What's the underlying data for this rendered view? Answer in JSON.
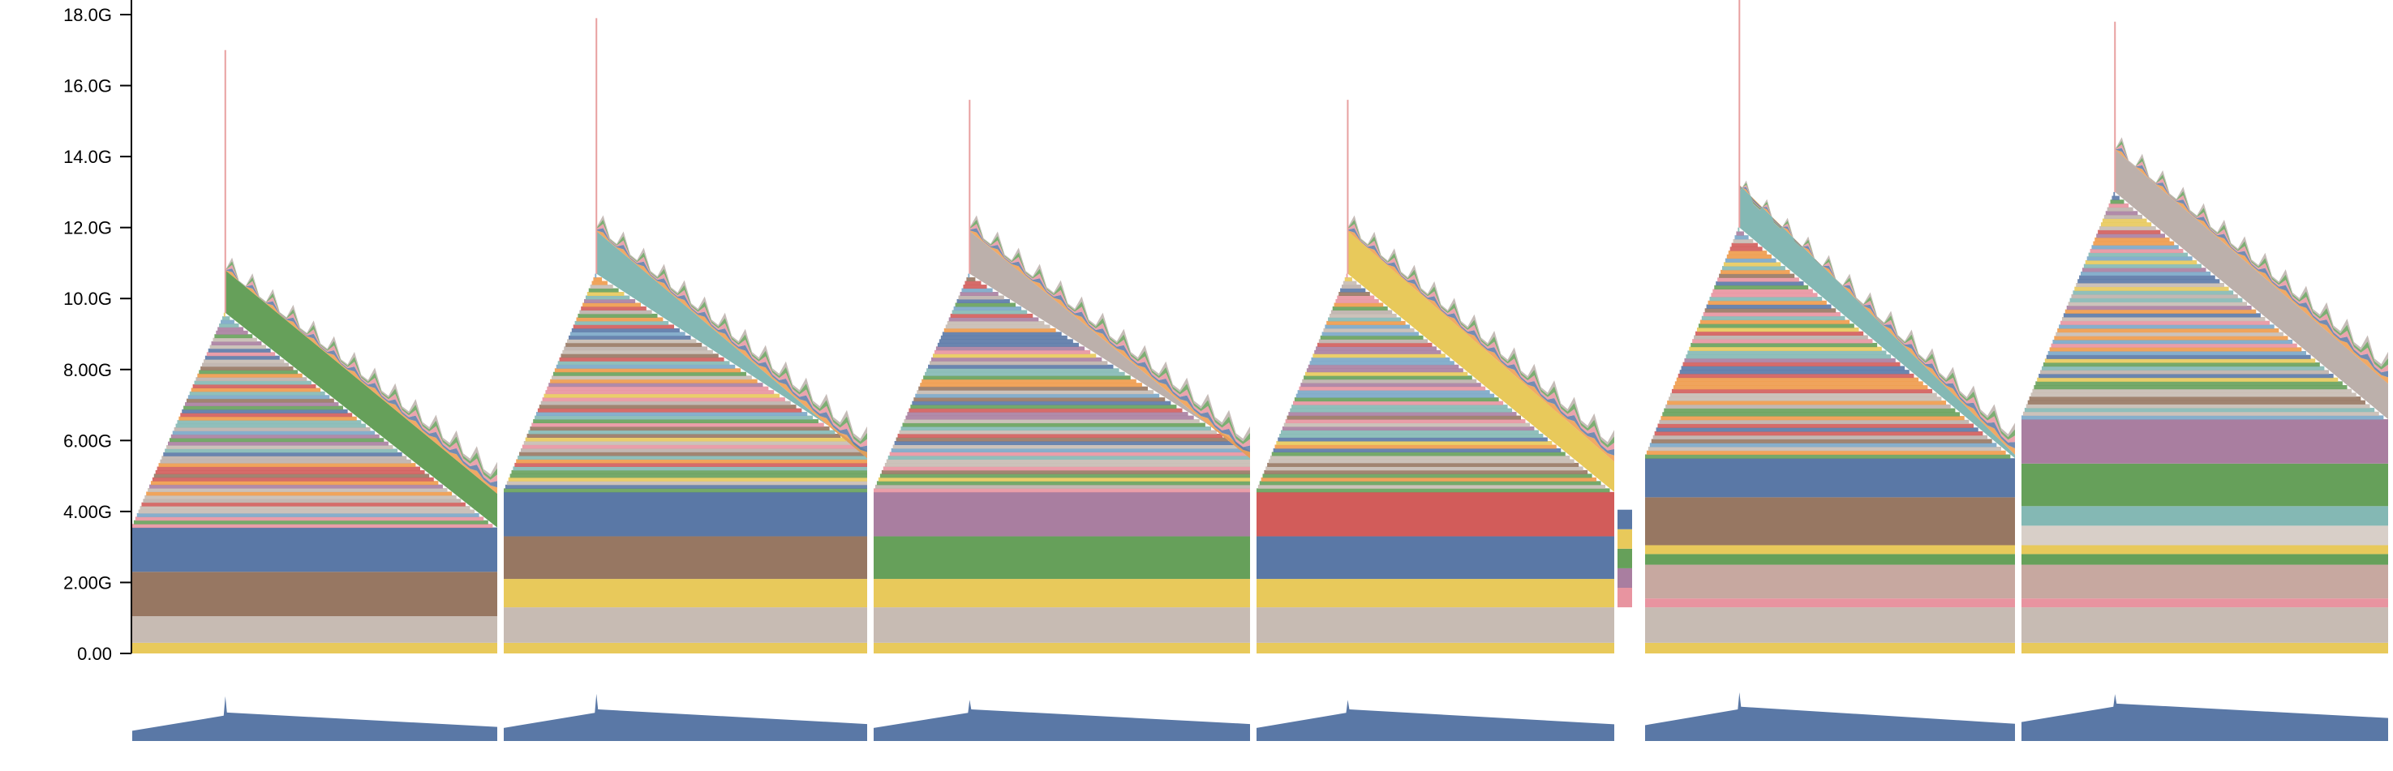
{
  "chart_data": {
    "type": "area",
    "stacked": true,
    "title": "",
    "xlabel": "",
    "ylabel": "",
    "ylim": [
      0,
      18
    ],
    "y_unit": "G",
    "y_ticks": [
      {
        "value": 0,
        "label": "0.00"
      },
      {
        "value": 2,
        "label": "2.00G"
      },
      {
        "value": 4,
        "label": "4.00G"
      },
      {
        "value": 6,
        "label": "6.00G"
      },
      {
        "value": 8,
        "label": "8.00G"
      },
      {
        "value": 10,
        "label": "10.0G"
      },
      {
        "value": 12,
        "label": "12.0G"
      },
      {
        "value": 14,
        "label": "14.0G"
      },
      {
        "value": 16,
        "label": "16.0G"
      },
      {
        "value": 18,
        "label": "18.0G"
      }
    ],
    "grid": false,
    "legend": "none",
    "segments": [
      {
        "index": 1,
        "base_bands": [
          {
            "from": 0,
            "to": 0.3,
            "color": "#e8c95b"
          },
          {
            "from": 0.3,
            "to": 1.05,
            "color": "#c7bbb3"
          },
          {
            "from": 1.05,
            "to": 2.3,
            "color": "#977762"
          },
          {
            "from": 2.3,
            "to": 3.55,
            "color": "#5a78a6"
          }
        ],
        "ramp_start": 4.0,
        "ramp_peak": 9.6,
        "peak_spike": 17.0,
        "tail_top": 10.8,
        "tail_end_top": 4.9,
        "diag_end_bottom": 3.55,
        "diag_color": "#66a05a"
      },
      {
        "index": 2,
        "base_bands": [
          {
            "from": 0,
            "to": 0.3,
            "color": "#e8c95b"
          },
          {
            "from": 0.3,
            "to": 1.3,
            "color": "#c7bbb3"
          },
          {
            "from": 1.3,
            "to": 2.1,
            "color": "#e8c95b"
          },
          {
            "from": 2.1,
            "to": 3.3,
            "color": "#977762"
          },
          {
            "from": 3.3,
            "to": 4.55,
            "color": "#5a78a6"
          }
        ],
        "ramp_start": 5.3,
        "ramp_peak": 10.7,
        "peak_spike": 17.9,
        "tail_top": 12.0,
        "tail_end_top": 5.9,
        "diag_end_bottom": 5.7,
        "diag_color": "#84b8b4"
      },
      {
        "index": 3,
        "base_bands": [
          {
            "from": 0,
            "to": 0.3,
            "color": "#e8c95b"
          },
          {
            "from": 0.3,
            "to": 1.3,
            "color": "#c7bbb3"
          },
          {
            "from": 1.3,
            "to": 2.1,
            "color": "#e8c95b"
          },
          {
            "from": 2.1,
            "to": 3.3,
            "color": "#66a05a"
          },
          {
            "from": 3.3,
            "to": 4.55,
            "color": "#a97ea0"
          }
        ],
        "ramp_start": 5.3,
        "ramp_peak": 10.7,
        "peak_spike": 15.6,
        "tail_top": 12.0,
        "tail_end_top": 5.9,
        "diag_end_bottom": 5.7,
        "diag_color": "#bcb0ab"
      },
      {
        "index": 4,
        "base_bands": [
          {
            "from": 0,
            "to": 0.3,
            "color": "#e8c95b"
          },
          {
            "from": 0.3,
            "to": 1.3,
            "color": "#c7bbb3"
          },
          {
            "from": 1.3,
            "to": 2.1,
            "color": "#e8c95b"
          },
          {
            "from": 2.1,
            "to": 3.3,
            "color": "#5a78a6"
          },
          {
            "from": 3.3,
            "to": 4.55,
            "color": "#d25c5a"
          }
        ],
        "ramp_start": 5.3,
        "ramp_peak": 10.7,
        "peak_spike": 15.6,
        "tail_top": 12.0,
        "tail_end_top": 5.8,
        "diag_end_bottom": 4.55,
        "diag_color": "#e8c95b"
      },
      {
        "index": 5,
        "base_bands": [
          {
            "from": 0,
            "to": 0.3,
            "color": "#e8c95b"
          },
          {
            "from": 0.3,
            "to": 1.3,
            "color": "#c7bbb3"
          },
          {
            "from": 1.3,
            "to": 1.55,
            "color": "#e894a0"
          },
          {
            "from": 1.55,
            "to": 2.5,
            "color": "#c7a8a0"
          },
          {
            "from": 2.5,
            "to": 2.8,
            "color": "#66a05a"
          },
          {
            "from": 2.8,
            "to": 3.05,
            "color": "#e8c95b"
          },
          {
            "from": 3.05,
            "to": 4.4,
            "color": "#977762"
          },
          {
            "from": 4.4,
            "to": 5.5,
            "color": "#5a78a6"
          }
        ],
        "ramp_start": 6.0,
        "ramp_peak": 12.0,
        "peak_spike": 18.5,
        "tail_top": 13.0,
        "tail_end_top": 6.0,
        "diag_end_bottom": 5.5,
        "diag_color": "#84b8b4"
      },
      {
        "index": 6,
        "base_bands": [
          {
            "from": 0,
            "to": 0.3,
            "color": "#e8c95b"
          },
          {
            "from": 0.3,
            "to": 1.3,
            "color": "#c7bbb3"
          },
          {
            "from": 1.3,
            "to": 1.55,
            "color": "#e894a0"
          },
          {
            "from": 1.55,
            "to": 2.5,
            "color": "#c7a8a0"
          },
          {
            "from": 2.5,
            "to": 2.8,
            "color": "#66a05a"
          },
          {
            "from": 2.8,
            "to": 3.05,
            "color": "#e8c95b"
          },
          {
            "from": 3.05,
            "to": 3.6,
            "color": "#d8cfc8"
          },
          {
            "from": 3.6,
            "to": 4.15,
            "color": "#84b8b4"
          },
          {
            "from": 4.15,
            "to": 5.35,
            "color": "#66a05a"
          },
          {
            "from": 5.35,
            "to": 6.6,
            "color": "#a97ea0"
          }
        ],
        "ramp_start": 7.0,
        "ramp_peak": 13.0,
        "peak_spike": 17.8,
        "tail_top": 14.2,
        "tail_end_top": 8.0,
        "diag_end_bottom": 6.6,
        "diag_color": "#bcb0ab"
      }
    ],
    "overview_color": "#5a78a6",
    "palette": [
      "#e8c95b",
      "#5a78a6",
      "#d25c5a",
      "#66a05a",
      "#a97ea0",
      "#84b8b4",
      "#977762",
      "#e894a0",
      "#c7bbb3",
      "#ee9a4a",
      "#bcb0ab",
      "#7aa6c7"
    ]
  }
}
